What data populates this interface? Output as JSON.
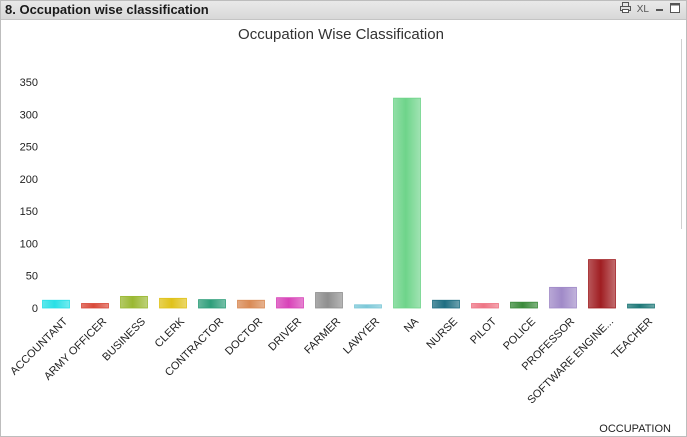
{
  "window": {
    "title": "8. Occupation  wise classification",
    "controls": {
      "print_icon": "print-icon",
      "xl_label": "XL",
      "minimize_icon": "minimize-icon",
      "restore_icon": "restore-icon"
    }
  },
  "chart_data": {
    "type": "bar",
    "title": "Occupation Wise Classification",
    "xlabel": "OCCUPATION",
    "ylabel": "",
    "ylim": [
      0,
      350
    ],
    "yticks": [
      0,
      50,
      100,
      150,
      200,
      250,
      300,
      350
    ],
    "categories": [
      "ACCOUNTANT",
      "ARMY OFFICER",
      "BUSINESS",
      "CLERK",
      "CONTRACTOR",
      "DOCTOR",
      "DRIVER",
      "FARMER",
      "LAWYER",
      "NA",
      "NURSE",
      "PILOT",
      "POLICE",
      "PROFESSOR",
      "SOFTWARE ENGINE...",
      "TEACHER"
    ],
    "values": [
      12,
      7,
      18,
      15,
      13,
      12,
      16,
      24,
      5,
      325,
      12,
      7,
      9,
      32,
      75,
      6
    ],
    "colors": [
      "#28e0e6",
      "#d94a3a",
      "#9ab832",
      "#e0c21a",
      "#2e9e7a",
      "#d98a55",
      "#d843b8",
      "#8f8f8f",
      "#7cc8d8",
      "#6ed48a",
      "#1e6e82",
      "#ee7585",
      "#3a8a3a",
      "#a08ac8",
      "#a01e22",
      "#1e7878"
    ],
    "grid": false,
    "legend": "none"
  }
}
